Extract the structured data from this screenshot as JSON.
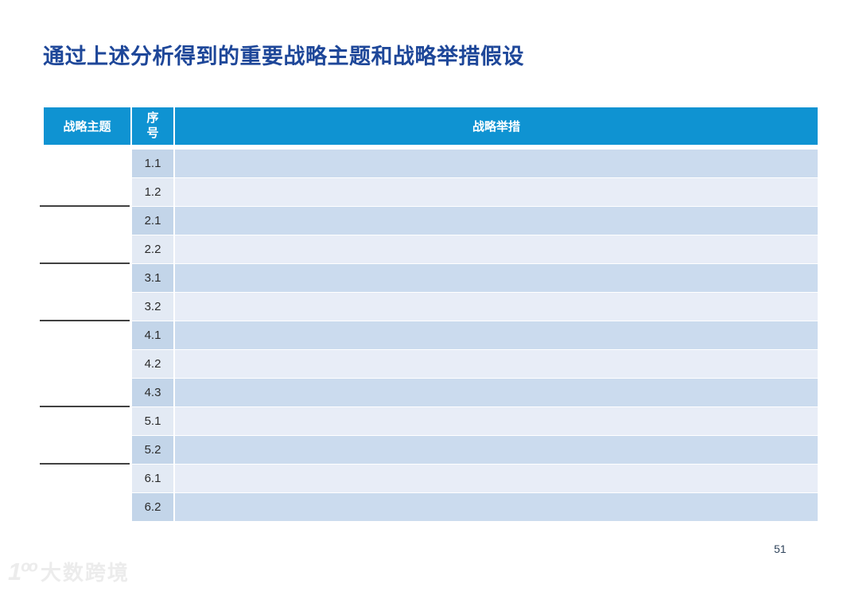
{
  "slide": {
    "title": "通过上述分析得到的重要战略主题和战略举措假设",
    "page_number": "51",
    "watermark": {
      "logo": "1ºº",
      "text": "大数跨境"
    }
  },
  "table": {
    "headers": {
      "theme": "战略主题",
      "index": "序号",
      "measure": "战略举措"
    },
    "rows": [
      {
        "num": "1.1",
        "measure": "",
        "shade": "dark",
        "group_end": false
      },
      {
        "num": "1.2",
        "measure": "",
        "shade": "light",
        "group_end": true
      },
      {
        "num": "2.1",
        "measure": "",
        "shade": "dark",
        "group_end": false
      },
      {
        "num": "2.2",
        "measure": "",
        "shade": "light",
        "group_end": true
      },
      {
        "num": "3.1",
        "measure": "",
        "shade": "dark",
        "group_end": false
      },
      {
        "num": "3.2",
        "measure": "",
        "shade": "light",
        "group_end": true
      },
      {
        "num": "4.1",
        "measure": "",
        "shade": "dark",
        "group_end": false
      },
      {
        "num": "4.2",
        "measure": "",
        "shade": "light",
        "group_end": false
      },
      {
        "num": "4.3",
        "measure": "",
        "shade": "dark",
        "group_end": true
      },
      {
        "num": "5.1",
        "measure": "",
        "shade": "light",
        "group_end": false
      },
      {
        "num": "5.2",
        "measure": "",
        "shade": "dark",
        "group_end": true
      },
      {
        "num": "6.1",
        "measure": "",
        "shade": "light",
        "group_end": false
      },
      {
        "num": "6.2",
        "measure": "",
        "shade": "dark",
        "group_end": false
      }
    ],
    "theme_groups": 6
  },
  "colors": {
    "title": "#1E4799",
    "header_bg": "#0F93D2",
    "header_text": "#FFFFFF",
    "row_dark_index": "#C3D5E9",
    "row_dark_measure": "#CBDBEE",
    "row_light_index": "#E3EAF4",
    "row_light_measure": "#E8EDF7",
    "group_line": "#414141",
    "page_number": "#31455C"
  }
}
